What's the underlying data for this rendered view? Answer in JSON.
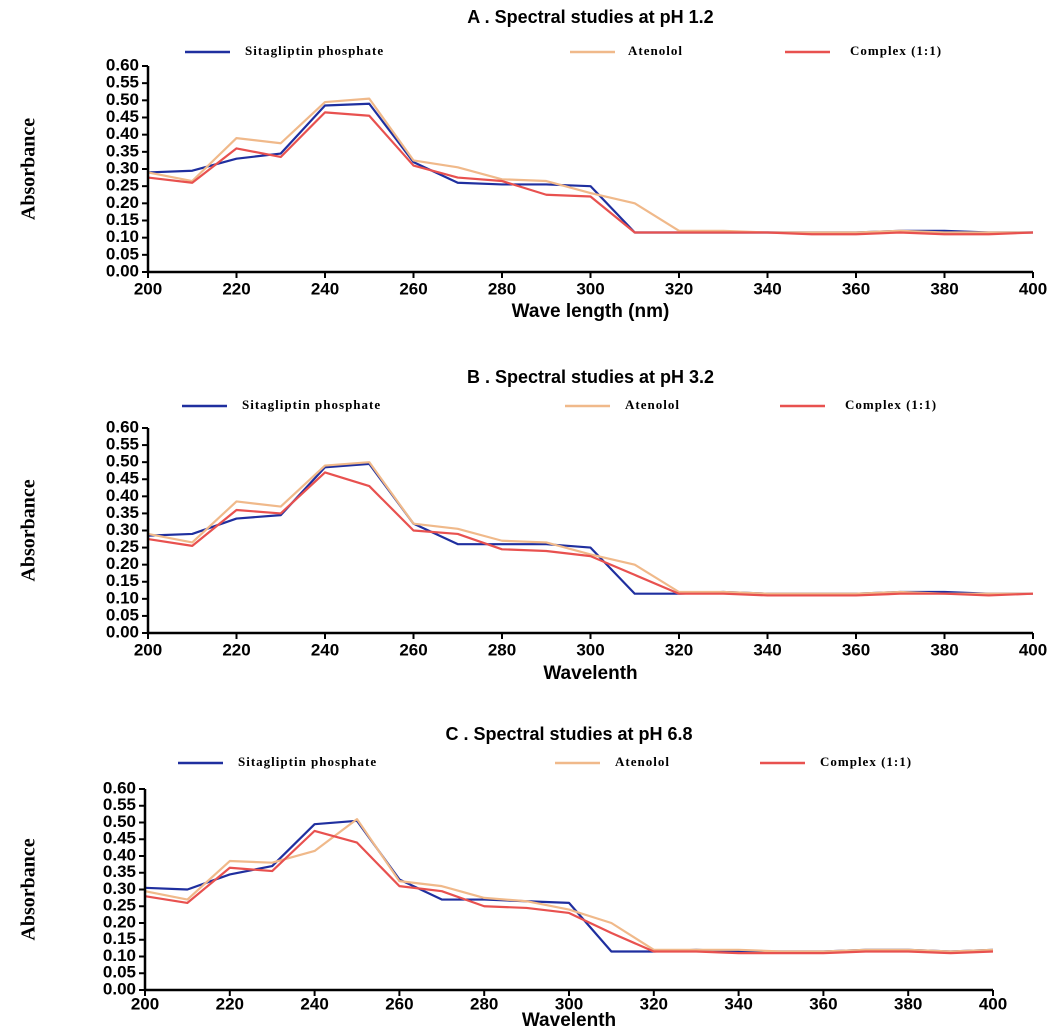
{
  "chart_data": [
    {
      "type": "line",
      "title": "A . Spectral studies at pH 1.2",
      "x_label": "Wave length (nm)",
      "y_label": "Absorbance",
      "x": [
        200,
        210,
        220,
        230,
        240,
        250,
        260,
        270,
        280,
        290,
        300,
        310,
        320,
        330,
        340,
        350,
        360,
        370,
        380,
        390,
        400
      ],
      "series": [
        {
          "name": "Sitagliptin phosphate",
          "color": "#1f2f9f",
          "values": [
            0.29,
            0.295,
            0.33,
            0.345,
            0.485,
            0.49,
            0.32,
            0.26,
            0.255,
            0.255,
            0.25,
            0.115,
            0.115,
            0.115,
            0.115,
            0.115,
            0.115,
            0.12,
            0.12,
            0.115,
            0.115
          ]
        },
        {
          "name": "Atenolol",
          "color": "#f0b98a",
          "values": [
            0.29,
            0.265,
            0.39,
            0.375,
            0.495,
            0.505,
            0.325,
            0.305,
            0.27,
            0.265,
            0.23,
            0.2,
            0.12,
            0.12,
            0.115,
            0.115,
            0.115,
            0.12,
            0.115,
            0.115,
            0.115
          ]
        },
        {
          "name": "Complex (1:1)",
          "color": "#e8514f",
          "values": [
            0.275,
            0.26,
            0.36,
            0.335,
            0.465,
            0.455,
            0.31,
            0.275,
            0.265,
            0.225,
            0.22,
            0.115,
            0.115,
            0.115,
            0.115,
            0.11,
            0.11,
            0.115,
            0.11,
            0.11,
            0.115
          ]
        }
      ],
      "xlim": [
        200,
        400
      ],
      "xticks": [
        200,
        220,
        240,
        260,
        280,
        300,
        320,
        340,
        360,
        380,
        400
      ],
      "ylim": [
        0,
        0.6
      ],
      "yticks": [
        {
          "value": 0,
          "label": "0.00"
        },
        0.05,
        {
          "value": 0.1,
          "label": "0.10"
        },
        0.15,
        {
          "value": 0.2,
          "label": "0.20"
        },
        0.25,
        {
          "value": 0.3,
          "label": "0.30"
        },
        0.35,
        {
          "value": 0.4,
          "label": "0.40"
        },
        0.45,
        {
          "value": 0.5,
          "label": "0.50"
        },
        0.55,
        {
          "value": 0.6,
          "label": "0.60"
        }
      ],
      "grid": false
    },
    {
      "type": "line",
      "title": "B . Spectral studies at pH 3.2",
      "x_label": "Wavelenth",
      "y_label": "Absorbance",
      "x": [
        200,
        210,
        220,
        230,
        240,
        250,
        260,
        270,
        280,
        290,
        300,
        310,
        320,
        330,
        340,
        350,
        360,
        370,
        380,
        390,
        400
      ],
      "series": [
        {
          "name": "Sitagliptin phosphate",
          "color": "#1f2f9f",
          "values": [
            0.285,
            0.29,
            0.335,
            0.345,
            0.485,
            0.495,
            0.32,
            0.26,
            0.26,
            0.26,
            0.25,
            0.115,
            0.115,
            0.12,
            0.115,
            0.115,
            0.115,
            0.12,
            0.12,
            0.115,
            0.115
          ]
        },
        {
          "name": "Atenolol",
          "color": "#f0b98a",
          "values": [
            0.29,
            0.265,
            0.385,
            0.37,
            0.49,
            0.5,
            0.32,
            0.305,
            0.27,
            0.265,
            0.23,
            0.2,
            0.12,
            0.12,
            0.115,
            0.115,
            0.115,
            0.12,
            0.115,
            0.115,
            0.115
          ]
        },
        {
          "name": "Complex (1:1)",
          "color": "#e8514f",
          "values": [
            0.275,
            0.255,
            0.36,
            0.35,
            0.47,
            0.43,
            0.3,
            0.29,
            0.245,
            0.24,
            0.225,
            0.17,
            0.115,
            0.115,
            0.11,
            0.11,
            0.11,
            0.115,
            0.115,
            0.11,
            0.115
          ]
        }
      ],
      "xlim": [
        200,
        400
      ],
      "xticks": [
        200,
        220,
        240,
        260,
        280,
        300,
        320,
        340,
        360,
        380,
        400
      ],
      "ylim": [
        0,
        0.6
      ],
      "yticks": [
        {
          "value": 0,
          "label": "0.00"
        },
        0.05,
        {
          "value": 0.1,
          "label": "0.10"
        },
        0.15,
        {
          "value": 0.2,
          "label": "0.20"
        },
        0.25,
        {
          "value": 0.3,
          "label": "0.30"
        },
        0.35,
        {
          "value": 0.4,
          "label": "0.40"
        },
        0.45,
        {
          "value": 0.5,
          "label": "0.50"
        },
        0.55,
        {
          "value": 0.6,
          "label": "0.60"
        }
      ],
      "grid": false
    },
    {
      "type": "line",
      "title": "C . Spectral studies at pH 6.8",
      "x_label": "Wavelenth",
      "y_label": "Absorbance",
      "x": [
        200,
        210,
        220,
        230,
        240,
        250,
        260,
        270,
        280,
        290,
        300,
        310,
        320,
        330,
        340,
        350,
        360,
        370,
        380,
        390,
        400
      ],
      "series": [
        {
          "name": "Sitagliptin phosphate",
          "color": "#1f2f9f",
          "values": [
            0.305,
            0.3,
            0.345,
            0.37,
            0.495,
            0.505,
            0.33,
            0.27,
            0.27,
            0.265,
            0.26,
            0.115,
            0.115,
            0.12,
            0.115,
            0.115,
            0.115,
            0.12,
            0.12,
            0.115,
            0.12
          ]
        },
        {
          "name": "Atenolol",
          "color": "#f0b98a",
          "values": [
            0.295,
            0.27,
            0.385,
            0.38,
            0.415,
            0.51,
            0.325,
            0.31,
            0.275,
            0.265,
            0.24,
            0.2,
            0.12,
            0.12,
            0.12,
            0.115,
            0.115,
            0.12,
            0.12,
            0.115,
            0.12
          ]
        },
        {
          "name": "Complex (1:1)",
          "color": "#e8514f",
          "values": [
            0.28,
            0.26,
            0.365,
            0.355,
            0.475,
            0.44,
            0.31,
            0.295,
            0.25,
            0.245,
            0.23,
            0.17,
            0.115,
            0.115,
            0.11,
            0.11,
            0.11,
            0.115,
            0.115,
            0.11,
            0.115
          ]
        }
      ],
      "xlim": [
        200,
        400
      ],
      "xticks": [
        200,
        220,
        240,
        260,
        280,
        300,
        320,
        340,
        360,
        380,
        400
      ],
      "ylim": [
        0,
        0.6
      ],
      "yticks": [
        {
          "value": 0,
          "label": "0.00"
        },
        0.05,
        {
          "value": 0.1,
          "label": "0.10"
        },
        0.15,
        {
          "value": 0.2,
          "label": "0.20"
        },
        0.25,
        {
          "value": 0.3,
          "label": "0.30"
        },
        0.35,
        {
          "value": 0.4,
          "label": "0.40"
        },
        0.45,
        {
          "value": 0.5,
          "label": "0.50"
        },
        0.55,
        {
          "value": 0.6,
          "label": "0.60"
        }
      ],
      "grid": false
    }
  ]
}
